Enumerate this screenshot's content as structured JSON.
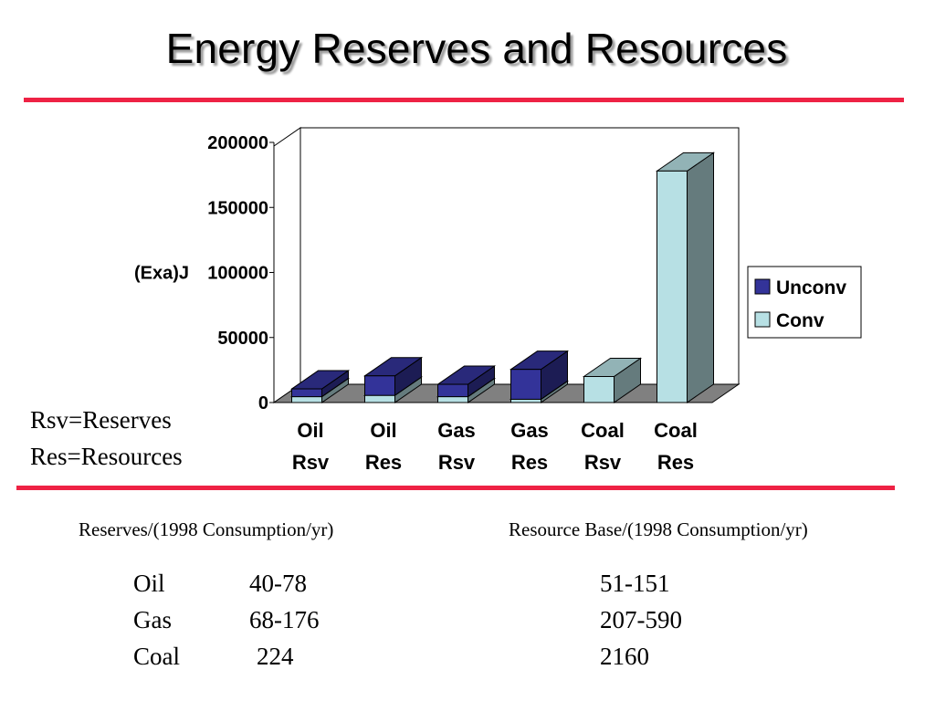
{
  "title": "Energy Reserves and Resources",
  "notes": [
    "Rsv=Reserves",
    "Res=Resources"
  ],
  "colors": {
    "unconv": "#333399",
    "conv": "#b7e0e4",
    "rule": "#ee2244",
    "floor": "#808080"
  },
  "chart_data": {
    "type": "bar",
    "stacked": true,
    "three_d": true,
    "categories": [
      [
        "Oil",
        "Rsv"
      ],
      [
        "Oil",
        "Res"
      ],
      [
        "Gas",
        "Rsv"
      ],
      [
        "Gas",
        "Res"
      ],
      [
        "Coal",
        "Rsv"
      ],
      [
        "Coal",
        "Res"
      ]
    ],
    "series": [
      {
        "name": "Conv",
        "values": [
          4500,
          5500,
          4500,
          2500,
          20000,
          178000
        ]
      },
      {
        "name": "Unconv",
        "values": [
          6000,
          15000,
          9500,
          23000,
          0,
          0
        ]
      }
    ],
    "ylabel": "(Exa)J",
    "ylim": [
      0,
      200000
    ],
    "yticks": [
      "0",
      "50000",
      "100000",
      "150000",
      "200000"
    ],
    "legend_position": "right",
    "legend_order": [
      "Unconv",
      "Conv"
    ]
  },
  "table": {
    "left_header": "Reserves/(1998 Consumption/yr)",
    "right_header": "Resource Base/(1998 Consumption/yr)",
    "rows": [
      {
        "fuel": "Oil",
        "reserves": "40-78",
        "resources": "51-151"
      },
      {
        "fuel": "Gas",
        "reserves": "68-176",
        "resources": "207-590"
      },
      {
        "fuel": "Coal",
        "reserves": "224",
        "resources": "2160"
      }
    ]
  }
}
